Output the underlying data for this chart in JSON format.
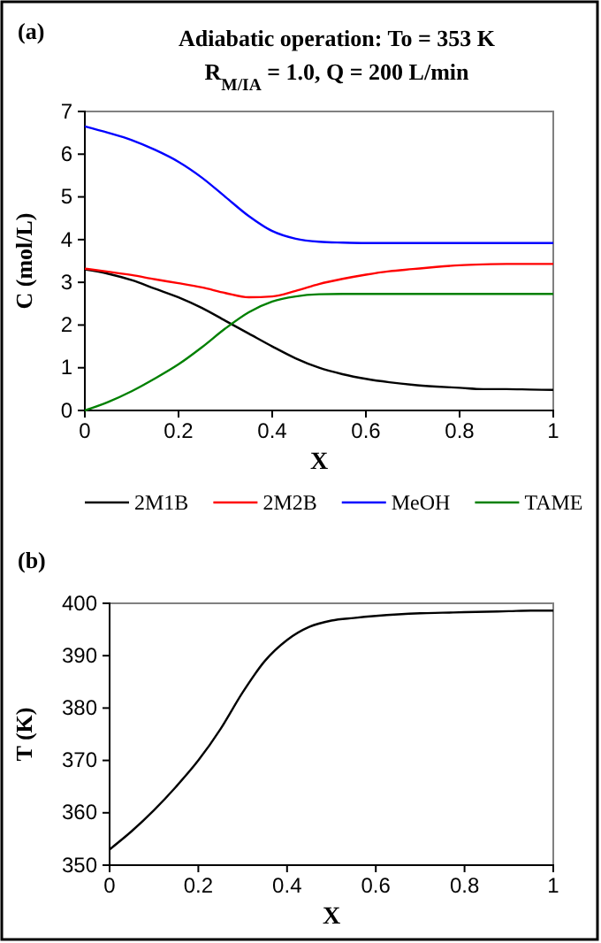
{
  "chart_data": [
    {
      "type": "line",
      "title": "Adiabatic operation: To = 353 K",
      "subtitle": "R$_{M/IA}$ = 1.0,  Q = 200 L/min",
      "annotations": [
        "(a)"
      ],
      "xlabel": "X",
      "ylabel": "C (mol/L)",
      "x": [
        0,
        0.05,
        0.1,
        0.15,
        0.2,
        0.25,
        0.3,
        0.35,
        0.4,
        0.45,
        0.5,
        0.55,
        0.6,
        0.65,
        0.7,
        0.75,
        0.8,
        0.85,
        0.9,
        0.95,
        1
      ],
      "series": [
        {
          "name": "2M1B",
          "color": "#000000",
          "values": [
            3.3,
            3.2,
            3.05,
            2.85,
            2.65,
            2.4,
            2.1,
            1.8,
            1.5,
            1.22,
            1.0,
            0.85,
            0.74,
            0.66,
            0.6,
            0.56,
            0.53,
            0.5,
            0.5,
            0.49,
            0.48
          ]
        },
        {
          "name": "2M2B",
          "color": "#ff0000",
          "values": [
            3.32,
            3.25,
            3.17,
            3.07,
            2.98,
            2.88,
            2.75,
            2.65,
            2.67,
            2.8,
            2.96,
            3.08,
            3.18,
            3.26,
            3.31,
            3.36,
            3.4,
            3.42,
            3.43,
            3.43,
            3.43
          ]
        },
        {
          "name": "MeOH",
          "color": "#0000ff",
          "values": [
            6.65,
            6.5,
            6.33,
            6.1,
            5.82,
            5.45,
            5.0,
            4.55,
            4.2,
            4.02,
            3.95,
            3.93,
            3.92,
            3.92,
            3.92,
            3.92,
            3.92,
            3.92,
            3.92,
            3.92,
            3.92
          ]
        },
        {
          "name": "TAME",
          "color": "#008000",
          "values": [
            0,
            0.2,
            0.45,
            0.75,
            1.08,
            1.48,
            1.92,
            2.3,
            2.55,
            2.67,
            2.72,
            2.73,
            2.73,
            2.73,
            2.73,
            2.73,
            2.73,
            2.73,
            2.73,
            2.73,
            2.73
          ]
        }
      ],
      "xlim": [
        0,
        1
      ],
      "xticks": [
        0,
        0.2,
        0.4,
        0.6,
        0.8,
        1
      ],
      "ylim": [
        0,
        7
      ],
      "yticks": [
        0,
        1,
        2,
        3,
        4,
        5,
        6,
        7
      ],
      "legend": "bottom",
      "grid": false
    },
    {
      "type": "line",
      "annotations": [
        "(b)"
      ],
      "xlabel": "X",
      "ylabel": "T (K)",
      "x": [
        0,
        0.05,
        0.1,
        0.15,
        0.2,
        0.25,
        0.3,
        0.35,
        0.4,
        0.45,
        0.5,
        0.55,
        0.6,
        0.65,
        0.7,
        0.75,
        0.8,
        0.85,
        0.9,
        0.95,
        1
      ],
      "series": [
        {
          "color": "#000000",
          "values": [
            353,
            356.5,
            360.5,
            365,
            370,
            376,
            383,
            389,
            393,
            395.5,
            396.7,
            397.2,
            397.6,
            397.9,
            398.1,
            398.2,
            398.3,
            398.4,
            398.5,
            398.6,
            398.6
          ]
        }
      ],
      "xlim": [
        0,
        1
      ],
      "xticks": [
        0,
        0.2,
        0.4,
        0.6,
        0.8,
        1
      ],
      "ylim": [
        350,
        400
      ],
      "yticks": [
        350,
        360,
        370,
        380,
        390,
        400
      ],
      "grid": false
    }
  ]
}
